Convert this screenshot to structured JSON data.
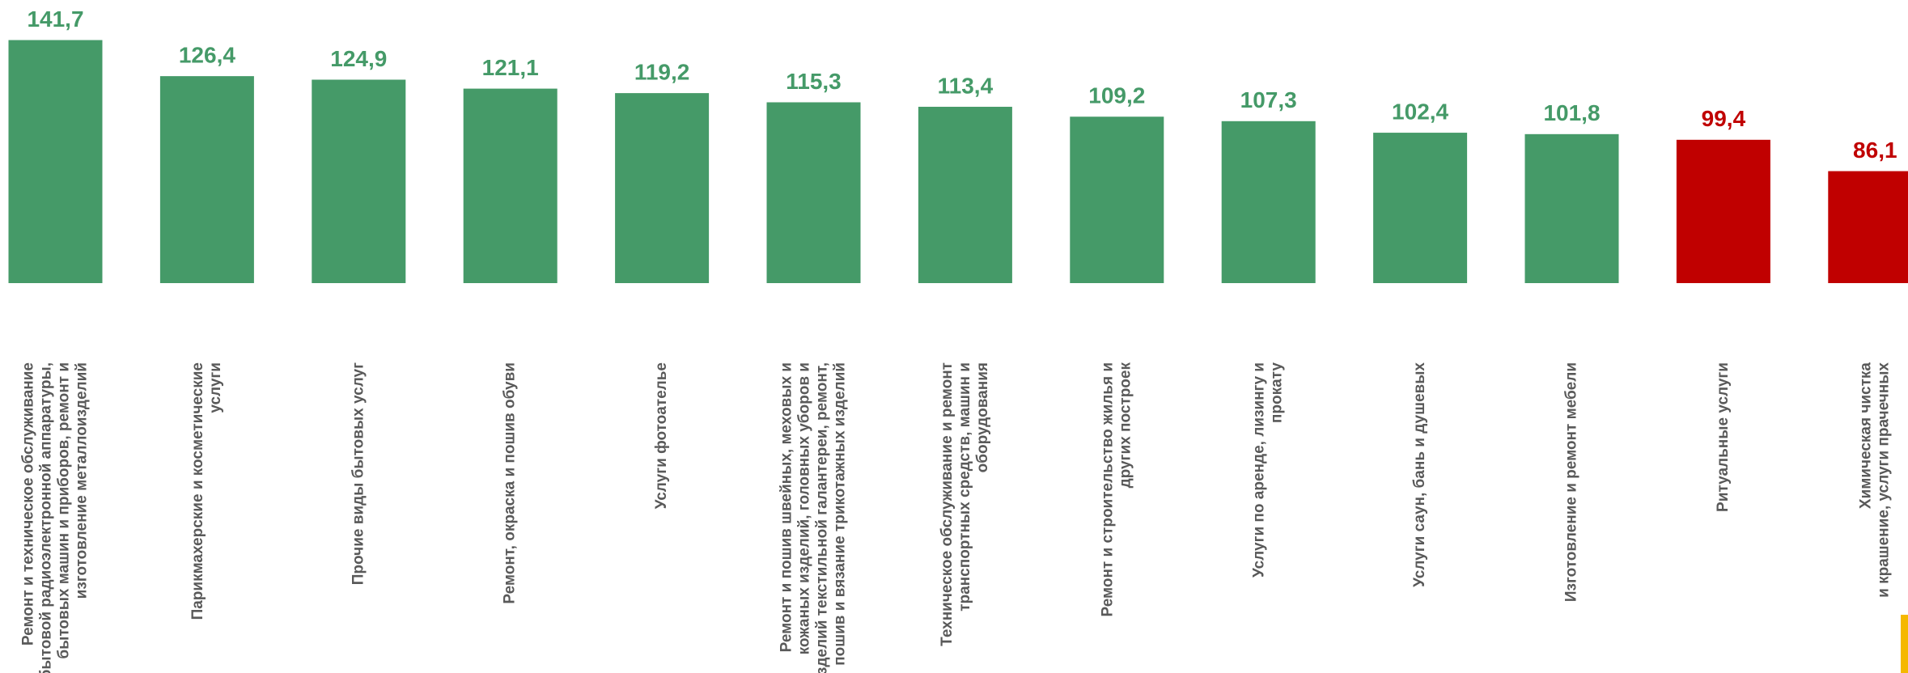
{
  "chart_data": {
    "type": "bar",
    "categories": [
      [
        "Ремонт и техническое обслуживание",
        "бытовой радиоэлектронной аппаратуры,",
        "бытовых машин и приборов, ремонт и",
        "изготовление металлоизделий"
      ],
      [
        "Парикмахерские и косметические",
        "услуги"
      ],
      [
        "Прочие виды бытовых услуг"
      ],
      [
        "Ремонт, окраска и пошив обуви"
      ],
      [
        "Услуги фотоателье"
      ],
      [
        "Ремонт и пошив швейных, меховых и",
        "кожаных изделий, головных уборов и",
        "изделий текстильной галантереи, ремонт,",
        "пошив и вязание трикотажных изделий"
      ],
      [
        "Техническое обслуживание и ремонт",
        "транспортных средств, машин и",
        "оборудования"
      ],
      [
        "Ремонт и строительство жилья и",
        "других построек"
      ],
      [
        "Услуги по аренде, лизингу и",
        "прокату"
      ],
      [
        "Услуги саун, бань и душевых"
      ],
      [
        "Изготовление и ремонт мебели"
      ],
      [
        "Ритуальные услуги"
      ],
      [
        "Химическая чистка",
        "и крашение, услуги прачечных"
      ]
    ],
    "values": [
      141.7,
      126.4,
      124.9,
      121.1,
      119.2,
      115.3,
      113.4,
      109.2,
      107.3,
      102.4,
      101.8,
      99.4,
      86.1
    ],
    "value_labels": [
      "141,7",
      "126,4",
      "124,9",
      "121,1",
      "119,2",
      "115,3",
      "113,4",
      "109,2",
      "107,3",
      "102,4",
      "101,8",
      "99,4",
      "86,1"
    ],
    "colors": [
      "#459a68",
      "#459a68",
      "#459a68",
      "#459a68",
      "#459a68",
      "#459a68",
      "#459a68",
      "#459a68",
      "#459a68",
      "#459a68",
      "#459a68",
      "#c00000",
      "#c00000"
    ],
    "ylim": [
      38.6,
      158.7
    ]
  }
}
